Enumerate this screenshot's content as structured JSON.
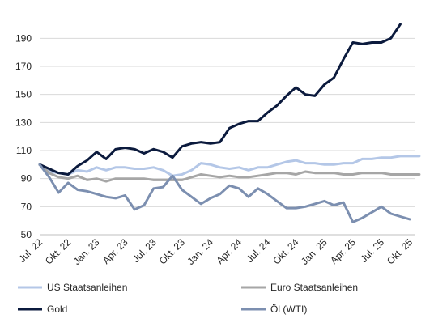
{
  "chart_data": {
    "type": "line",
    "title": "",
    "xlabel": "",
    "ylabel": "",
    "ylim": [
      50,
      200
    ],
    "yticks": [
      50,
      70,
      90,
      110,
      130,
      150,
      170,
      190
    ],
    "grid": "horizontal",
    "legend_position": "bottom",
    "x_tick_labels": [
      "Jul. 22",
      "Okt. 22",
      "Jan. 23",
      "Apr. 23",
      "Jul. 23",
      "Okt. 23",
      "Jan. 24",
      "Apr. 24",
      "Jul. 24",
      "Okt. 24",
      "Jan. 25",
      "Apr. 25",
      "Jul. 25",
      "Okt. 25"
    ],
    "x_tick_months": [
      0,
      3,
      6,
      9,
      12,
      15,
      18,
      21,
      24,
      27,
      30,
      33,
      36,
      39
    ],
    "series": [
      {
        "name": "US Staatsanleihen",
        "color": "#b4c7e7",
        "width": 3,
        "start_month": 0,
        "values": [
          100,
          95,
          94,
          93,
          96,
          95,
          98,
          96,
          98,
          98,
          97,
          97,
          98,
          96,
          92,
          93,
          96,
          101,
          100,
          98,
          97,
          98,
          96,
          98,
          98,
          100,
          102,
          103,
          101,
          101,
          100,
          100,
          101,
          101,
          104,
          104,
          105,
          105,
          106,
          106,
          106
        ]
      },
      {
        "name": "Euro Staatsanleihen",
        "color": "#a6a6a6",
        "width": 3,
        "start_month": 0,
        "values": [
          100,
          94,
          91,
          90,
          92,
          89,
          90,
          88,
          90,
          90,
          90,
          90,
          89,
          89,
          89,
          89,
          91,
          93,
          92,
          91,
          92,
          91,
          91,
          92,
          93,
          94,
          94,
          93,
          95,
          94,
          94,
          94,
          93,
          93,
          94,
          94,
          94,
          93,
          93,
          93,
          93
        ]
      },
      {
        "name": "Gold",
        "color": "#0b1a3d",
        "width": 3,
        "start_month": 0,
        "values": [
          100,
          97,
          94,
          93,
          99,
          103,
          109,
          104,
          111,
          112,
          111,
          108,
          111,
          109,
          105,
          113,
          115,
          116,
          115,
          116,
          126,
          129,
          131,
          131,
          137,
          142,
          149,
          155,
          150,
          149,
          157,
          162,
          175,
          187,
          186,
          187,
          187,
          190,
          200
        ]
      },
      {
        "name": "Öl (WTI)",
        "color": "#7c8fb0",
        "width": 3,
        "start_month": 0,
        "values": [
          100,
          91,
          80,
          87,
          82,
          81,
          79,
          77,
          76,
          78,
          68,
          71,
          83,
          84,
          92,
          82,
          77,
          72,
          76,
          79,
          85,
          83,
          77,
          83,
          79,
          74,
          69,
          69,
          70,
          72,
          74,
          71,
          73,
          59,
          62,
          66,
          70,
          65,
          63,
          61
        ]
      }
    ]
  }
}
